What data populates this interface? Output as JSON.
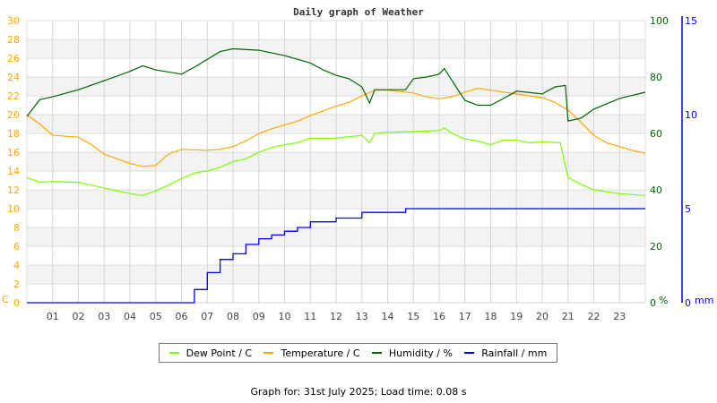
{
  "chart_data": {
    "type": "line",
    "title": "Daily graph of Weather",
    "x_ticks": [
      "01",
      "02",
      "03",
      "04",
      "05",
      "06",
      "07",
      "08",
      "09",
      "10",
      "11",
      "12",
      "13",
      "14",
      "15",
      "16",
      "17",
      "18",
      "19",
      "20",
      "21",
      "22",
      "23"
    ],
    "xlim": [
      0,
      24
    ],
    "grid": true,
    "legend_placement": "bottom",
    "axes": {
      "left": {
        "label": "C",
        "ylim": [
          0,
          30
        ],
        "ticks": [
          "0",
          "2",
          "4",
          "6",
          "8",
          "10",
          "12",
          "14",
          "16",
          "18",
          "20",
          "22",
          "24",
          "26",
          "28",
          "30"
        ],
        "color": "#ffa500"
      },
      "right1": {
        "label": "%",
        "ylim": [
          0,
          100
        ],
        "ticks": [
          "0",
          "20",
          "40",
          "60",
          "80",
          "100"
        ],
        "color": "#006400"
      },
      "right2": {
        "label": "mm",
        "ylim": [
          0,
          15
        ],
        "ticks": [
          "0",
          "5",
          "10",
          "15"
        ],
        "color": "#0000ff"
      }
    },
    "series": [
      {
        "name": "Dew Point / C",
        "axis": "left",
        "color": "#7cfc00",
        "x": [
          0,
          0.5,
          1,
          2,
          3,
          4,
          4.5,
          5,
          5.5,
          6,
          6.5,
          7,
          7.5,
          8,
          8.5,
          9,
          9.5,
          10,
          10.5,
          11,
          12,
          13,
          13.3,
          13.5,
          14,
          15,
          16,
          16.2,
          16.5,
          17,
          17.5,
          18,
          18.5,
          19,
          19.5,
          20,
          20.7,
          21,
          21.5,
          22,
          23,
          24
        ],
        "y": [
          13.3,
          12.8,
          12.9,
          12.8,
          12.2,
          11.6,
          11.4,
          11.9,
          12.5,
          13.2,
          13.8,
          14.0,
          14.4,
          15.0,
          15.3,
          16.0,
          16.5,
          16.8,
          17.0,
          17.5,
          17.5,
          17.8,
          17.0,
          18.0,
          18.1,
          18.2,
          18.3,
          18.6,
          18.0,
          17.4,
          17.2,
          16.8,
          17.3,
          17.3,
          17.0,
          17.1,
          17.0,
          13.3,
          12.6,
          12.0,
          11.6,
          11.4
        ]
      },
      {
        "name": "Temperature / C",
        "axis": "left",
        "color": "#ffa500",
        "x": [
          0,
          0.5,
          1,
          2,
          2.5,
          3,
          3.5,
          4,
          4.5,
          5,
          5.5,
          6,
          7,
          7.5,
          8,
          8.5,
          9,
          9.5,
          10,
          10.5,
          11,
          11.5,
          12,
          12.5,
          13,
          13.5,
          14,
          15,
          15.5,
          16,
          16.5,
          17,
          17.5,
          18,
          18.5,
          19,
          19.5,
          20,
          20.5,
          21,
          21.5,
          22,
          22.5,
          23,
          23.5,
          24
        ],
        "y": [
          20.0,
          19.0,
          17.8,
          17.6,
          16.8,
          15.8,
          15.3,
          14.8,
          14.5,
          14.6,
          15.8,
          16.3,
          16.2,
          16.3,
          16.6,
          17.2,
          18.0,
          18.5,
          18.9,
          19.3,
          19.9,
          20.4,
          20.9,
          21.3,
          22.0,
          22.6,
          22.6,
          22.3,
          21.9,
          21.7,
          21.9,
          22.4,
          22.8,
          22.6,
          22.4,
          22.2,
          22.0,
          21.8,
          21.3,
          20.5,
          19.2,
          17.8,
          17.0,
          16.6,
          16.2,
          15.9
        ]
      },
      {
        "name": "Humidity / %",
        "axis": "right1",
        "color": "#006400",
        "x": [
          0,
          0.5,
          1,
          2,
          3,
          4,
          4.5,
          5,
          6,
          6.5,
          7,
          7.5,
          8,
          9,
          10,
          11,
          11.5,
          12,
          12.5,
          13,
          13.3,
          13.5,
          14,
          14.7,
          15,
          15.5,
          16,
          16.2,
          16.5,
          17,
          17.5,
          18,
          18.5,
          19,
          20,
          20.5,
          20.9,
          21,
          21.5,
          22,
          23,
          24
        ],
        "y": [
          66,
          72,
          73,
          75.5,
          78.7,
          82,
          84,
          82.5,
          81,
          83.5,
          86.3,
          89,
          90,
          89.5,
          87.6,
          85,
          82.5,
          80.6,
          79.4,
          76.5,
          70.8,
          75.5,
          75.5,
          75.5,
          79.4,
          80,
          81,
          83,
          78.7,
          71.7,
          70,
          70,
          72.4,
          75,
          74,
          76.5,
          77,
          64.4,
          65.4,
          68.6,
          72.4,
          74.6
        ]
      },
      {
        "name": "Rainfall / mm",
        "axis": "right2",
        "color": "#0000ff",
        "x": [
          0,
          6.3,
          6.5,
          7,
          7.5,
          8,
          8.5,
          9,
          9.5,
          10,
          10.5,
          11,
          12,
          13,
          14.7,
          24
        ],
        "y": [
          0,
          0,
          0.7,
          1.6,
          2.3,
          2.6,
          3.1,
          3.4,
          3.6,
          3.8,
          4.0,
          4.3,
          4.5,
          4.8,
          5.0,
          5.0
        ]
      }
    ]
  },
  "footer": "Graph for: 31st July 2025; Load time: 0.08 s"
}
